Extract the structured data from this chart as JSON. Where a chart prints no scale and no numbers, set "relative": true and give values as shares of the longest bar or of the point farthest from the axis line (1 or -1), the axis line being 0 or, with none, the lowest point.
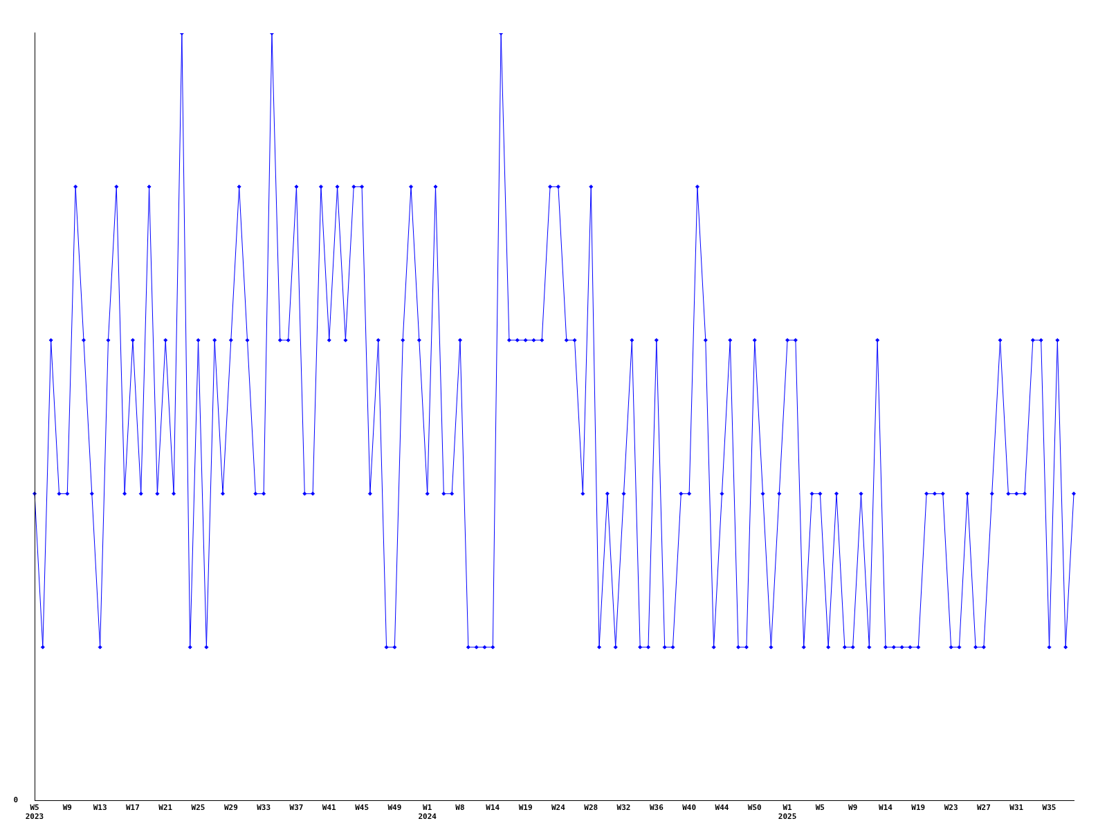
{
  "chart_data": {
    "type": "line",
    "relative": true,
    "color": "#0000ff",
    "marker": "diamond",
    "line_style": "solid",
    "grid": false,
    "legend": false,
    "categories": [
      "W5\n2023",
      null,
      null,
      null,
      "W9",
      null,
      null,
      null,
      "W13",
      null,
      null,
      null,
      "W17",
      null,
      null,
      null,
      "W21",
      null,
      null,
      null,
      "W25",
      null,
      null,
      null,
      "W29",
      null,
      null,
      null,
      "W33",
      null,
      null,
      null,
      "W37",
      null,
      null,
      null,
      "W41",
      null,
      null,
      null,
      "W45",
      null,
      null,
      null,
      "W49",
      null,
      null,
      null,
      "W1\n2024",
      null,
      null,
      null,
      "W8",
      null,
      null,
      null,
      "W14",
      null,
      null,
      null,
      "W19",
      null,
      null,
      null,
      "W24",
      null,
      null,
      null,
      "W28",
      null,
      null,
      null,
      "W32",
      null,
      null,
      null,
      "W36",
      null,
      null,
      null,
      "W40",
      null,
      null,
      null,
      "W44",
      null,
      null,
      null,
      "W50",
      null,
      null,
      null,
      "W1\n2025",
      null,
      null,
      null,
      "W5",
      null,
      null,
      null,
      "W9",
      null,
      null,
      null,
      "W14",
      null,
      null,
      null,
      "W19",
      null,
      null,
      null,
      "W23",
      null,
      null,
      null,
      "W27",
      null,
      null,
      null,
      "W31",
      null,
      null,
      null,
      "W35",
      null,
      null,
      null
    ],
    "values": [
      0.4,
      0.2,
      0.6,
      0.4,
      0.4,
      0.8,
      0.6,
      0.4,
      0.2,
      0.6,
      0.8,
      0.4,
      0.6,
      0.4,
      0.8,
      0.4,
      0.6,
      0.4,
      1,
      0.2,
      0.6,
      0.2,
      0.6,
      0.4,
      0.6,
      0.8,
      0.6,
      0.4,
      0.4,
      1,
      0.6,
      0.6,
      0.8,
      0.4,
      0.4,
      0.8,
      0.6,
      0.8,
      0.6,
      0.8,
      0.8,
      0.4,
      0.6,
      0.2,
      0.2,
      0.6,
      0.8,
      0.6,
      0.4,
      0.8,
      0.4,
      0.4,
      0.6,
      0.2,
      0.2,
      0.2,
      0.2,
      1,
      0.6,
      0.6,
      0.6,
      0.6,
      0.6,
      0.8,
      0.8,
      0.6,
      0.6,
      0.4,
      0.8,
      0.2,
      0.4,
      0.2,
      0.4,
      0.6,
      0.2,
      0.2,
      0.6,
      0.2,
      0.2,
      0.4,
      0.4,
      0.8,
      0.6,
      0.2,
      0.4,
      0.6,
      0.2,
      0.2,
      0.6,
      0.4,
      0.2,
      0.4,
      0.6,
      0.6,
      0.2,
      0.4,
      0.4,
      0.2,
      0.4,
      0.2,
      0.2,
      0.4,
      0.2,
      0.6,
      0.2,
      0.2,
      0.2,
      0.2,
      0.2,
      0.4,
      0.4,
      0.4,
      0.2,
      0.2,
      0.4,
      0.2,
      0.2,
      0.4,
      0.6,
      0.4,
      0.4,
      0.4,
      0.6,
      0.6,
      0.2,
      0.6,
      0.2,
      0.4
    ],
    "annotations": [
      "0"
    ]
  }
}
